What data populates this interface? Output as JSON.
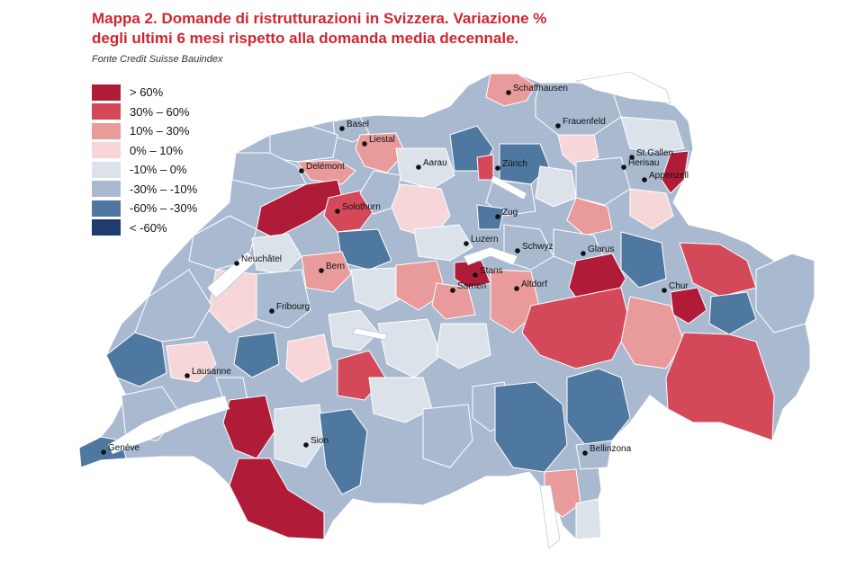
{
  "title_line1": "Mappa 2. Domande di ristrutturazioni in Svizzera. Variazione %",
  "title_line2": "degli ultimi 6 mesi rispetto alla domanda media decennale.",
  "source": "Fonte Credit Suisse Bauindex",
  "legend": [
    {
      "label": "> 60%",
      "color": "#b01c38"
    },
    {
      "label": "30% – 60%",
      "color": "#d4495a"
    },
    {
      "label": "10% – 30%",
      "color": "#e99a9a"
    },
    {
      "label": "0% – 10%",
      "color": "#f6d6d8"
    },
    {
      "label": "-10% – 0%",
      "color": "#dce2ea"
    },
    {
      "label": "-30% – -10%",
      "color": "#a9bad0"
    },
    {
      "label": "-60% – -30%",
      "color": "#4f78a0"
    },
    {
      "label": "< -60%",
      "color": "#1f3c6e"
    }
  ],
  "cities": [
    "Schaffhausen",
    "Basel",
    "Frauenfeld",
    "Liestal",
    "St.Gallen",
    "Delémont",
    "Aarau",
    "Zürich",
    "Herisau",
    "Appenzell",
    "Solothurn",
    "Zug",
    "Luzern",
    "Schwyz",
    "Glarus",
    "Neuchâtel",
    "Bern",
    "Stans",
    "Sarnen",
    "Altdorf",
    "Chur",
    "Fribourg",
    "Lausanne",
    "Sion",
    "Genève",
    "Bellinzona"
  ]
}
